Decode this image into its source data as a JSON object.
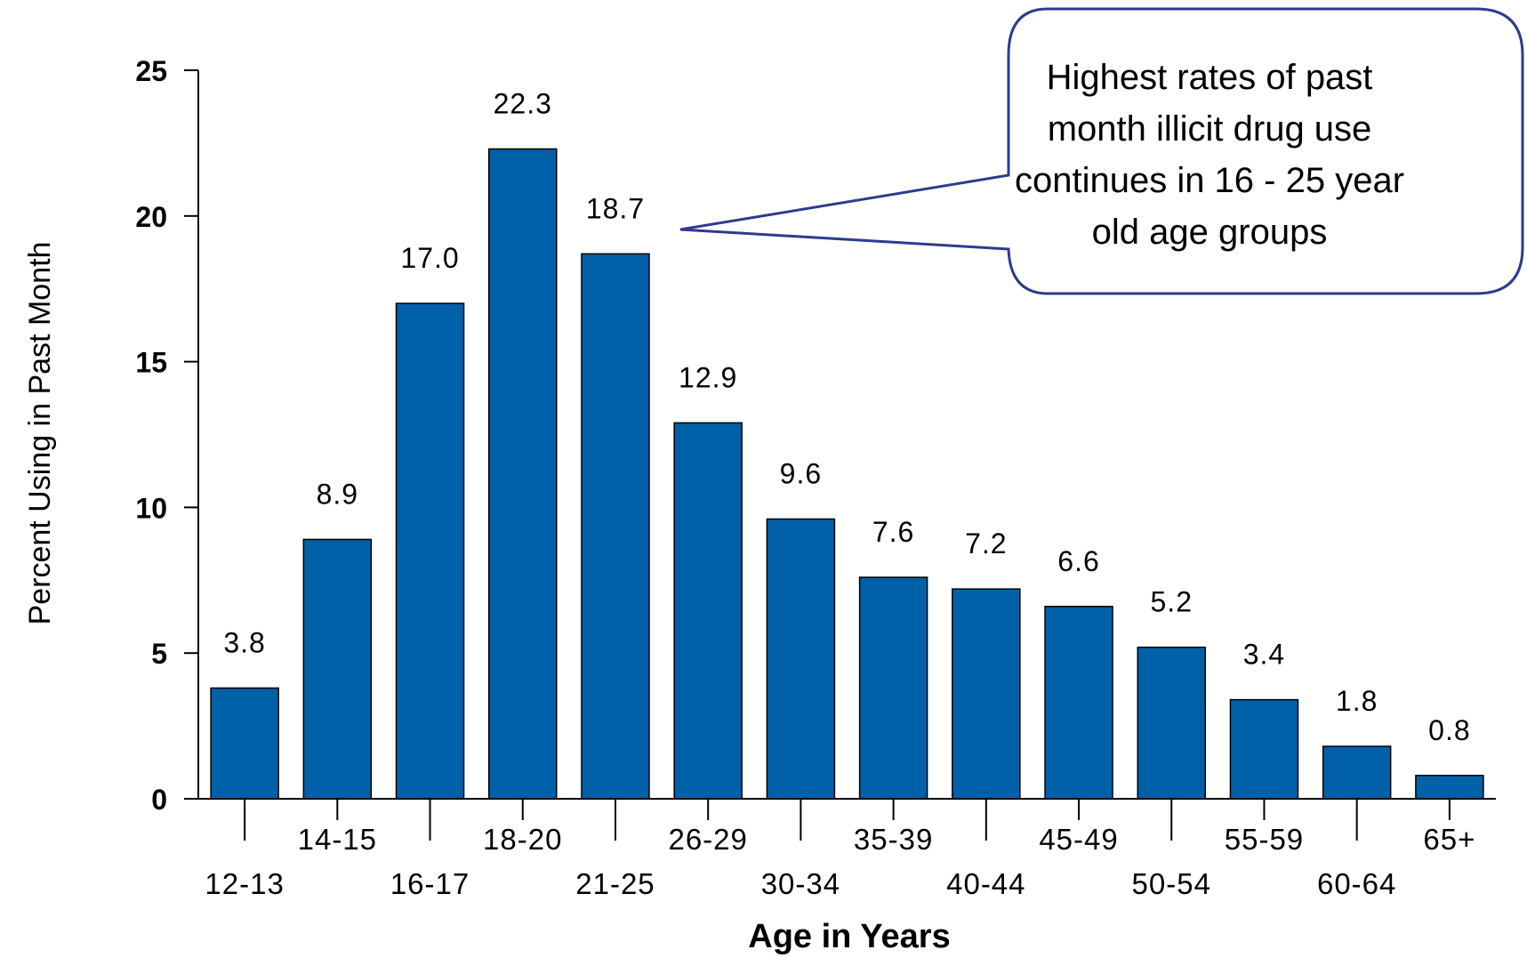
{
  "chart_data": {
    "type": "bar",
    "categories": [
      "12-13",
      "14-15",
      "16-17",
      "18-20",
      "21-25",
      "26-29",
      "30-34",
      "35-39",
      "40-44",
      "45-49",
      "50-54",
      "55-59",
      "60-64",
      "65+"
    ],
    "values": [
      3.8,
      8.9,
      17.0,
      22.3,
      18.7,
      12.9,
      9.6,
      7.6,
      7.2,
      6.6,
      5.2,
      3.4,
      1.8,
      0.8
    ],
    "value_labels": [
      "3.8",
      "8.9",
      "17.0",
      "22.3",
      "18.7",
      "12.9",
      "9.6",
      "7.6",
      "7.2",
      "6.6",
      "5.2",
      "3.4",
      "1.8",
      "0.8"
    ],
    "title": "",
    "xlabel": "Age in Years",
    "ylabel": "Percent Using in Past Month",
    "ylim": [
      0,
      25
    ],
    "yticks": [
      0,
      5,
      10,
      15,
      20,
      25
    ],
    "grid": false,
    "bar_color": "#0060A8",
    "annotation": {
      "text": "Highest rates of past month illicit drug use continues in 16 - 25 year old age groups",
      "points_to": "21-25",
      "border_color": "#2E3A8C"
    }
  }
}
